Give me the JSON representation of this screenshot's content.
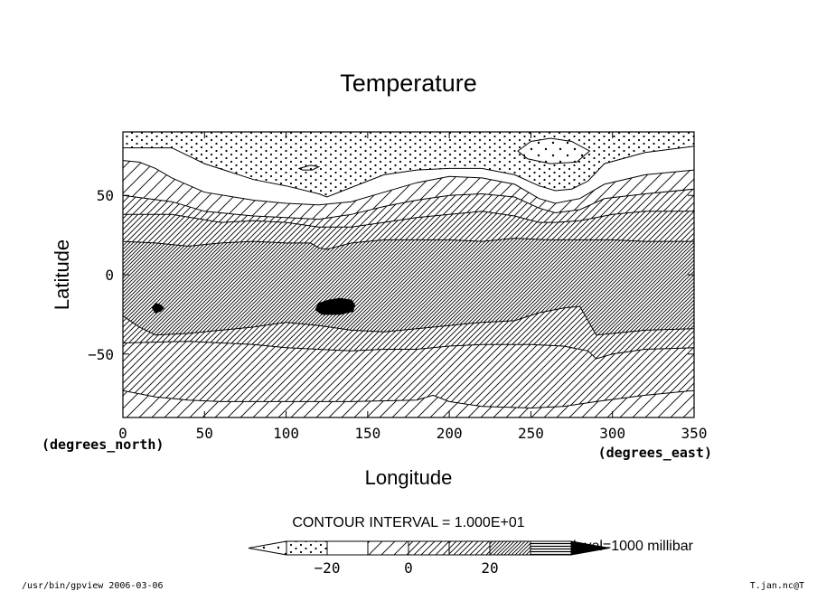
{
  "chart_data": {
    "type": "contour",
    "title": "Temperature",
    "xlabel": "Longitude",
    "ylabel": "Latitude",
    "x_unit": "(degrees_east)",
    "y_unit": "(degrees_north)",
    "xlim": [
      0,
      350
    ],
    "ylim": [
      -90,
      90
    ],
    "x_ticks": [
      0,
      50,
      100,
      150,
      200,
      250,
      300,
      350
    ],
    "y_ticks": [
      50,
      0,
      -50
    ],
    "y_tick_labels": [
      "50",
      "0",
      "−50"
    ],
    "contour_interval_text": "CONTOUR INTERVAL = 1.000E+01",
    "level_text": "level=1000 millibar",
    "legend": {
      "levels": [
        -30,
        -20,
        -10,
        0,
        10,
        20,
        30
      ],
      "tick_values": [
        -20,
        0,
        20
      ],
      "tick_labels": [
        "−20",
        "0",
        "20"
      ],
      "fills": [
        "dots-sparse",
        "dots",
        "blank",
        "hatch-sparse",
        "hatch",
        "hatch-medium",
        "hatch-dense",
        "hatch-very-dense",
        "solid"
      ]
    },
    "contours": [
      {
        "level": -20,
        "points": [
          [
            0,
            80
          ],
          [
            30,
            80
          ],
          [
            50,
            70
          ],
          [
            80,
            60
          ],
          [
            100,
            56
          ],
          [
            120,
            51
          ],
          [
            125,
            49
          ],
          [
            140,
            55
          ],
          [
            160,
            63
          ],
          [
            180,
            66
          ],
          [
            200,
            67
          ],
          [
            220,
            67
          ],
          [
            240,
            63
          ],
          [
            255,
            56
          ],
          [
            265,
            53
          ],
          [
            275,
            54
          ],
          [
            285,
            59
          ],
          [
            295,
            70
          ],
          [
            320,
            77
          ],
          [
            350,
            81
          ]
        ]
      },
      {
        "level": -10,
        "points": [
          [
            0,
            72
          ],
          [
            10,
            71
          ],
          [
            20,
            67
          ],
          [
            30,
            61
          ],
          [
            50,
            52
          ],
          [
            80,
            47
          ],
          [
            100,
            45
          ],
          [
            120,
            44
          ],
          [
            140,
            46
          ],
          [
            160,
            52
          ],
          [
            180,
            58
          ],
          [
            200,
            62
          ],
          [
            220,
            61
          ],
          [
            240,
            57
          ],
          [
            255,
            48
          ],
          [
            265,
            45
          ],
          [
            280,
            48
          ],
          [
            295,
            57
          ],
          [
            320,
            63
          ],
          [
            350,
            66
          ]
        ]
      },
      {
        "level": 0,
        "points": [
          [
            0,
            50
          ],
          [
            30,
            46
          ],
          [
            50,
            40
          ],
          [
            80,
            37
          ],
          [
            100,
            36
          ],
          [
            120,
            35
          ],
          [
            140,
            38
          ],
          [
            160,
            43
          ],
          [
            180,
            47
          ],
          [
            200,
            50
          ],
          [
            220,
            51
          ],
          [
            240,
            49
          ],
          [
            255,
            42
          ],
          [
            265,
            39
          ],
          [
            280,
            41
          ],
          [
            295,
            48
          ],
          [
            320,
            51
          ],
          [
            350,
            54
          ]
        ]
      },
      {
        "level": 10,
        "points": [
          [
            0,
            38
          ],
          [
            30,
            38
          ],
          [
            60,
            33
          ],
          [
            80,
            34
          ],
          [
            100,
            33
          ],
          [
            120,
            30
          ],
          [
            140,
            30
          ],
          [
            160,
            33
          ],
          [
            180,
            36
          ],
          [
            200,
            38
          ],
          [
            220,
            40
          ],
          [
            240,
            37
          ],
          [
            255,
            33
          ],
          [
            265,
            33
          ],
          [
            280,
            34
          ],
          [
            300,
            38
          ],
          [
            320,
            40
          ],
          [
            350,
            40
          ]
        ]
      },
      {
        "level": 20,
        "points": [
          [
            0,
            21
          ],
          [
            20,
            20
          ],
          [
            40,
            18
          ],
          [
            60,
            20
          ],
          [
            80,
            21
          ],
          [
            100,
            20
          ],
          [
            115,
            20
          ],
          [
            120,
            17
          ],
          [
            125,
            16
          ],
          [
            140,
            20
          ],
          [
            160,
            22
          ],
          [
            180,
            22
          ],
          [
            200,
            22
          ],
          [
            220,
            21
          ],
          [
            240,
            23
          ],
          [
            260,
            22
          ],
          [
            280,
            22
          ],
          [
            300,
            22
          ],
          [
            320,
            21
          ],
          [
            350,
            21
          ]
        ]
      },
      {
        "level": 20,
        "points": [
          [
            0,
            -26
          ],
          [
            10,
            -33
          ],
          [
            20,
            -38
          ],
          [
            40,
            -37
          ],
          [
            60,
            -35
          ],
          [
            80,
            -33
          ],
          [
            100,
            -30
          ],
          [
            120,
            -32
          ],
          [
            140,
            -35
          ],
          [
            160,
            -36
          ],
          [
            180,
            -34
          ],
          [
            200,
            -32
          ],
          [
            220,
            -30
          ],
          [
            240,
            -29
          ],
          [
            255,
            -24
          ],
          [
            270,
            -21
          ],
          [
            280,
            -20
          ],
          [
            290,
            -38
          ],
          [
            300,
            -37
          ],
          [
            320,
            -35
          ],
          [
            350,
            -34
          ]
        ]
      },
      {
        "level": 10,
        "points": [
          [
            0,
            -43
          ],
          [
            40,
            -42
          ],
          [
            80,
            -44
          ],
          [
            100,
            -46
          ],
          [
            140,
            -48
          ],
          [
            160,
            -47
          ],
          [
            180,
            -47
          ],
          [
            200,
            -45
          ],
          [
            220,
            -44
          ],
          [
            250,
            -44
          ],
          [
            270,
            -45
          ],
          [
            285,
            -48
          ],
          [
            290,
            -53
          ],
          [
            300,
            -50
          ],
          [
            320,
            -47
          ],
          [
            350,
            -46
          ]
        ]
      },
      {
        "level": 0,
        "points": [
          [
            0,
            -73
          ],
          [
            20,
            -77
          ],
          [
            40,
            -79
          ],
          [
            60,
            -80
          ],
          [
            100,
            -80
          ],
          [
            140,
            -80
          ],
          [
            180,
            -79
          ],
          [
            190,
            -76
          ],
          [
            200,
            -80
          ],
          [
            220,
            -83
          ],
          [
            250,
            -84
          ],
          [
            270,
            -83
          ],
          [
            290,
            -80
          ],
          [
            320,
            -76
          ],
          [
            350,
            -73
          ]
        ]
      }
    ],
    "blobs": [
      {
        "level": 30,
        "points": [
          [
            20,
            -18
          ],
          [
            23,
            -19
          ],
          [
            25,
            -21
          ],
          [
            23,
            -23
          ],
          [
            20,
            -24
          ],
          [
            18,
            -21
          ]
        ]
      },
      {
        "level": 30,
        "points": [
          [
            118,
            -22
          ],
          [
            120,
            -18
          ],
          [
            126,
            -16
          ],
          [
            133,
            -15
          ],
          [
            140,
            -16
          ],
          [
            142,
            -19
          ],
          [
            141,
            -23
          ],
          [
            133,
            -25
          ],
          [
            122,
            -25
          ]
        ]
      },
      {
        "level": -30,
        "points": [
          [
            242,
            78
          ],
          [
            250,
            84
          ],
          [
            262,
            86
          ],
          [
            275,
            84
          ],
          [
            286,
            78
          ],
          [
            278,
            71
          ],
          [
            262,
            70
          ],
          [
            248,
            73
          ]
        ]
      },
      {
        "level": -20,
        "points": [
          [
            108,
            67
          ],
          [
            115,
            69
          ],
          [
            120,
            68
          ],
          [
            116,
            66
          ],
          [
            110,
            66
          ]
        ]
      }
    ]
  },
  "footer": {
    "left": "/usr/bin/gpview   2006-03-06",
    "right": "T.jan.nc@T"
  }
}
